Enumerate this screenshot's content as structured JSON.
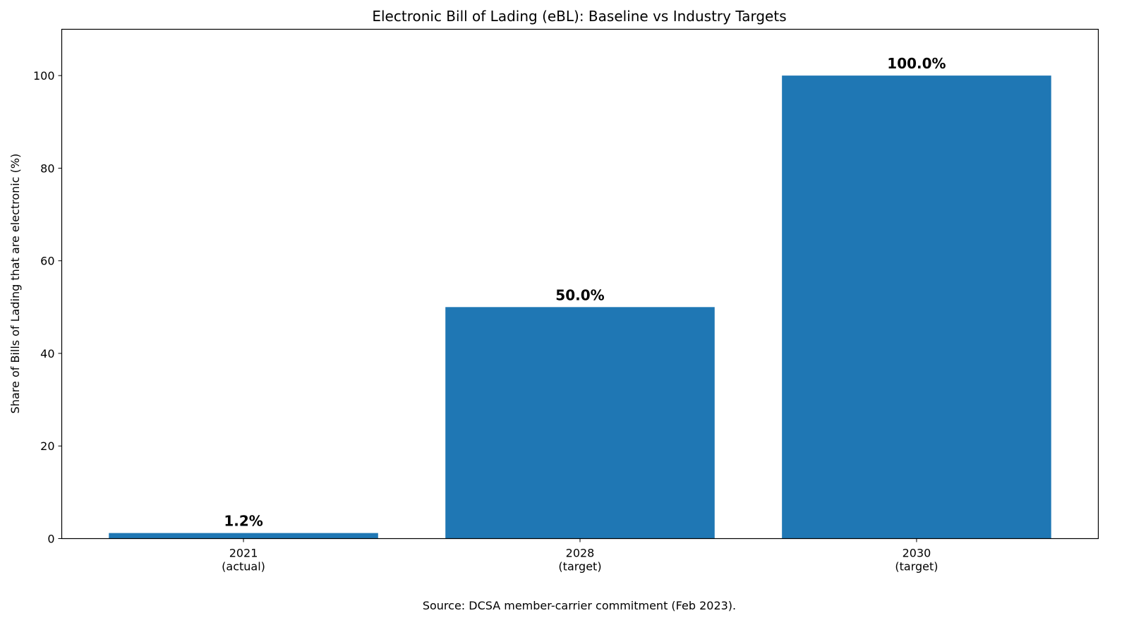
{
  "chart_data": {
    "type": "bar",
    "title": "Electronic Bill of Lading (eBL): Baseline vs Industry Targets",
    "xlabel": "",
    "ylabel": "Share of Bills of Lading that are electronic (%)",
    "categories": [
      [
        "2021",
        "(actual)"
      ],
      [
        "2028",
        "(target)"
      ],
      [
        "2030",
        "(target)"
      ]
    ],
    "values": [
      1.2,
      50.0,
      100.0
    ],
    "data_labels": [
      "1.2%",
      "50.0%",
      "100.0%"
    ],
    "ylim": [
      0,
      110
    ],
    "yticks": [
      0,
      20,
      40,
      60,
      80,
      100
    ],
    "grid": false,
    "bar_color": "#1f77b4",
    "footnote": "Source: DCSA member-carrier commitment (Feb 2023)."
  }
}
